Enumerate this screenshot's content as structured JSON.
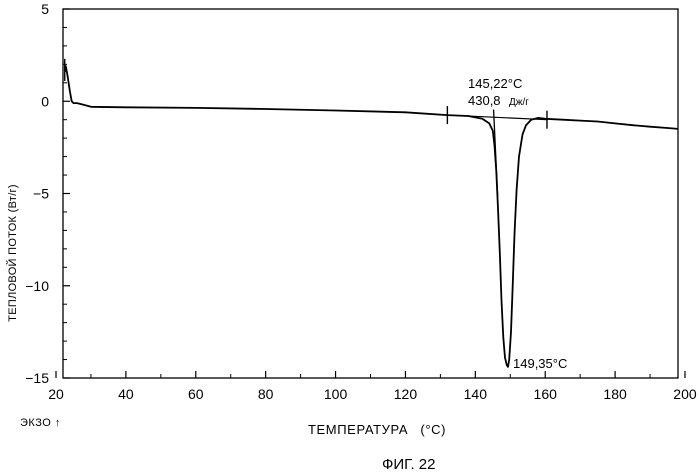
{
  "chart_data": {
    "type": "line",
    "ylabel": "ТЕПЛОВОЙ ПОТОК (Вт/г)",
    "xlabel_prefix": "ТЕМПЕРАТУРА",
    "xlabel_unit": "(°C)",
    "exo_label": "ЭКЗО ↑",
    "figure_caption": "ФИГ. 22",
    "xlim": [
      22,
      198
    ],
    "ylim": [
      -15,
      5
    ],
    "xticks": [
      20,
      40,
      60,
      80,
      100,
      120,
      140,
      160,
      180,
      200
    ],
    "xtick_labels": [
      "20",
      "40",
      "60",
      "80",
      "100",
      "120",
      "140",
      "160",
      "180",
      "200"
    ],
    "yticks": [
      5,
      0,
      -5,
      -10,
      -15
    ],
    "ytick_labels": [
      "5",
      "0",
      "−5",
      "−10",
      "−15"
    ],
    "grid": false,
    "series": [
      {
        "x": [
          22.6,
          22.8,
          23.0,
          23.2,
          23.6,
          24.0,
          24.5,
          25.0,
          26.0,
          28.0,
          30.0,
          40.0,
          60.0,
          80.0,
          100.0,
          120.0,
          132.0,
          138.0,
          142.0,
          144.0,
          145.0,
          145.5,
          146.0,
          146.5,
          147.0,
          147.5,
          148.0,
          148.5,
          149.0,
          149.35,
          149.7,
          150.2,
          150.7,
          151.2,
          151.8,
          152.5,
          153.5,
          154.5,
          156.0,
          158.0,
          160.0,
          165.0,
          170.0,
          175.0,
          180.0,
          185.0,
          190.0,
          195.0,
          198.0
        ],
        "y": [
          1.6,
          1.9,
          1.7,
          1.5,
          1.0,
          0.5,
          0.0,
          -0.1,
          -0.1,
          -0.2,
          -0.3,
          -0.33,
          -0.36,
          -0.42,
          -0.5,
          -0.6,
          -0.75,
          -0.8,
          -0.95,
          -1.2,
          -1.6,
          -2.4,
          -3.8,
          -5.8,
          -8.2,
          -10.8,
          -12.8,
          -13.9,
          -14.3,
          -14.4,
          -14.0,
          -12.5,
          -10.0,
          -7.2,
          -4.8,
          -3.0,
          -1.8,
          -1.3,
          -1.0,
          -0.9,
          -0.95,
          -1.0,
          -1.05,
          -1.1,
          -1.2,
          -1.3,
          -1.38,
          -1.45,
          -1.5
        ]
      }
    ],
    "annotations": [
      {
        "text": "145,22°C",
        "x": 145.22
      },
      {
        "text": "430,8",
        "unit": "Дж/г"
      },
      {
        "text": "149,35°C",
        "x": 149.35,
        "y": -14.4
      }
    ],
    "integration_markers_x": [
      132,
      160.5
    ],
    "onset_tangent": {
      "x1": 145.22,
      "y1": -0.45,
      "x2": 146.4,
      "y2": -5.2
    },
    "baseline_segment": {
      "x1": 132,
      "y1": -0.75,
      "x2": 160.5,
      "y2": -1.0
    },
    "start_marker": {
      "x": 22.5,
      "y1": 1.1,
      "y2": 2.3
    }
  }
}
